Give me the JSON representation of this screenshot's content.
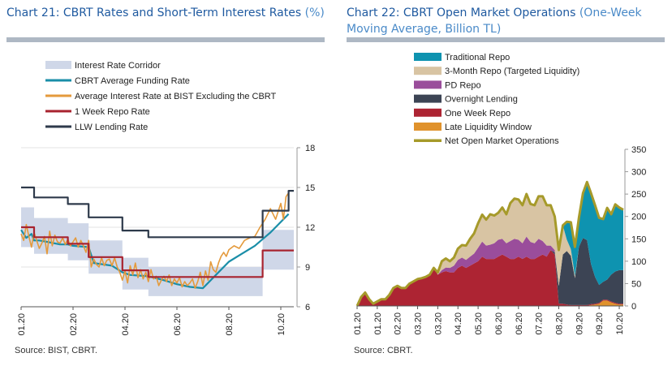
{
  "left_panel": {
    "title": "Chart 21: CBRT Rates and Short-Term Interest Rates",
    "title_unit": "(%)",
    "source": "Source: BIST, CBRT."
  },
  "right_panel": {
    "title": "Chart 22: CBRT Open Market Operations",
    "title_unit": "(One-Week Moving Average, Billion TL)",
    "source": "Source: CBRT."
  },
  "chart_data": [
    {
      "type": "line",
      "title": "Chart 21: CBRT Rates and Short-Term Interest Rates (%)",
      "ylim": [
        6,
        18
      ],
      "y_ticks": [
        6,
        9,
        12,
        15,
        18
      ],
      "y_axis_side": "right",
      "x_ticks": [
        "01.20",
        "02.20",
        "04.20",
        "06.20",
        "08.20",
        "10.20"
      ],
      "x_tick_pos": [
        0.0,
        2.0,
        4.0,
        6.0,
        8.0,
        10.0
      ],
      "x_range": [
        0,
        10.5
      ],
      "grid": true,
      "legend_position": "top",
      "band": {
        "name": "Interest Rate Corridor",
        "color": "#cfd7e8",
        "x": [
          0,
          0.5,
          0.5,
          1.8,
          1.8,
          2.6,
          2.6,
          3.9,
          3.9,
          4.9,
          4.9,
          9.3,
          9.3,
          10.5
        ],
        "lower": [
          10.5,
          10.5,
          10.0,
          10.0,
          9.5,
          9.5,
          8.5,
          8.5,
          7.3,
          7.3,
          6.8,
          6.8,
          8.8,
          8.8
        ],
        "upper": [
          13.5,
          13.5,
          12.7,
          12.7,
          12.3,
          12.3,
          11.0,
          11.0,
          9.7,
          9.7,
          9.0,
          9.0,
          11.8,
          11.8
        ]
      },
      "series": [
        {
          "name": "CBRT Average Funding Rate",
          "color": "#1a8ea8",
          "width": 2.2,
          "x": [
            0,
            0.2,
            0.4,
            0.5,
            0.7,
            1.0,
            1.5,
            1.8,
            2.0,
            2.6,
            2.8,
            3.5,
            3.9,
            4.2,
            4.9,
            5.5,
            6.0,
            6.5,
            7.0,
            7.5,
            8.0,
            8.5,
            9.0,
            9.3,
            9.6,
            10.0,
            10.3
          ],
          "y": [
            11.8,
            11.2,
            11.5,
            11.0,
            11.0,
            10.9,
            10.7,
            10.7,
            10.6,
            10.5,
            9.3,
            9.1,
            8.6,
            8.4,
            8.3,
            8.0,
            7.7,
            7.5,
            7.4,
            8.4,
            9.4,
            10.0,
            10.6,
            11.1,
            11.6,
            12.4,
            13.0
          ]
        },
        {
          "name": "Average Interest Rate at BIST Excluding the CBRT",
          "color": "#e49a3c",
          "width": 1.6,
          "x": [
            0,
            0.1,
            0.2,
            0.3,
            0.4,
            0.5,
            0.6,
            0.7,
            0.8,
            0.9,
            1.0,
            1.1,
            1.2,
            1.3,
            1.4,
            1.5,
            1.6,
            1.7,
            1.8,
            1.9,
            2.0,
            2.1,
            2.2,
            2.3,
            2.4,
            2.5,
            2.6,
            2.7,
            2.8,
            2.9,
            3.0,
            3.1,
            3.2,
            3.3,
            3.4,
            3.5,
            3.6,
            3.7,
            3.8,
            3.9,
            4.0,
            4.1,
            4.2,
            4.3,
            4.4,
            4.5,
            4.6,
            4.7,
            4.8,
            4.9,
            5.0,
            5.1,
            5.2,
            5.3,
            5.4,
            5.5,
            5.6,
            5.7,
            5.8,
            5.9,
            6.0,
            6.1,
            6.2,
            6.3,
            6.4,
            6.5,
            6.6,
            6.7,
            6.8,
            6.9,
            7.0,
            7.1,
            7.2,
            7.3,
            7.4,
            7.5,
            7.6,
            7.7,
            7.8,
            7.9,
            8.0,
            8.2,
            8.4,
            8.6,
            8.8,
            9.0,
            9.2,
            9.4,
            9.6,
            9.8,
            10.0,
            10.1,
            10.2,
            10.3
          ],
          "y": [
            11.5,
            11.0,
            12.2,
            11.3,
            10.5,
            11.6,
            11.0,
            10.4,
            10.8,
            11.3,
            10.0,
            11.7,
            10.6,
            11.4,
            10.9,
            10.8,
            11.2,
            10.7,
            11.1,
            10.6,
            10.9,
            11.2,
            10.5,
            11.0,
            10.6,
            10.1,
            11.0,
            9.0,
            9.6,
            9.2,
            9.0,
            9.7,
            9.1,
            9.5,
            9.6,
            9.1,
            9.7,
            9.0,
            8.6,
            8.0,
            8.7,
            7.8,
            9.1,
            8.4,
            9.3,
            8.2,
            8.8,
            8.1,
            8.6,
            7.9,
            8.8,
            8.1,
            8.3,
            7.6,
            8.0,
            8.3,
            7.9,
            8.4,
            7.6,
            8.1,
            7.8,
            8.2,
            7.5,
            7.9,
            7.6,
            7.8,
            8.1,
            7.4,
            7.9,
            8.6,
            7.6,
            8.7,
            8.0,
            9.4,
            8.8,
            8.6,
            9.3,
            9.8,
            10.1,
            9.8,
            10.3,
            10.6,
            10.4,
            11.0,
            11.2,
            11.3,
            12.0,
            12.6,
            13.4,
            12.6,
            13.8,
            12.6,
            14.3,
            14.6
          ]
        },
        {
          "name": "1 Week Repo Rate",
          "color": "#a8232f",
          "width": 2.2,
          "step": true,
          "x": [
            0,
            0.5,
            0.5,
            1.8,
            1.8,
            2.6,
            2.6,
            3.9,
            3.9,
            4.9,
            4.9,
            9.3,
            9.3,
            10.5
          ],
          "y": [
            12.0,
            12.0,
            11.25,
            11.25,
            10.75,
            10.75,
            9.75,
            9.75,
            8.75,
            8.75,
            8.25,
            8.25,
            10.25,
            10.25
          ]
        },
        {
          "name": "LLW Lending Rate",
          "color": "#2e3a4b",
          "width": 2.2,
          "step": true,
          "x": [
            0,
            0.5,
            0.5,
            1.8,
            1.8,
            2.6,
            2.6,
            3.9,
            3.9,
            4.9,
            4.9,
            9.3,
            9.3,
            10.3,
            10.3,
            10.5
          ],
          "y": [
            15.0,
            15.0,
            14.25,
            14.25,
            13.75,
            13.75,
            12.75,
            12.75,
            11.75,
            11.75,
            11.25,
            11.25,
            13.25,
            13.25,
            14.75,
            14.75
          ]
        }
      ]
    },
    {
      "type": "area",
      "title": "Chart 22: CBRT Open Market Operations (One-Week Moving Average, Billion TL)",
      "ylim": [
        0,
        350
      ],
      "y_ticks": [
        0,
        50,
        100,
        150,
        200,
        250,
        300,
        350
      ],
      "y_axis_side": "right",
      "x_ticks": [
        "01.20",
        "01.20",
        "02.20",
        "03.20",
        "03.20",
        "04.20",
        "05.20",
        "06.20",
        "06.20",
        "07.20",
        "08.20",
        "09.20",
        "09.20",
        "10.20"
      ],
      "x_tick_pos": [
        0,
        0.5,
        1,
        1.5,
        2,
        2.5,
        3,
        3.5,
        4,
        4.5,
        5,
        5.5,
        6,
        6.5
      ],
      "x_range": [
        0,
        6.6
      ],
      "legend_position": "top",
      "x": [
        0,
        0.1,
        0.2,
        0.3,
        0.4,
        0.5,
        0.6,
        0.7,
        0.8,
        0.9,
        1.0,
        1.1,
        1.2,
        1.3,
        1.4,
        1.5,
        1.6,
        1.7,
        1.8,
        1.9,
        2.0,
        2.1,
        2.2,
        2.3,
        2.4,
        2.5,
        2.6,
        2.7,
        2.8,
        2.9,
        3.0,
        3.1,
        3.2,
        3.3,
        3.4,
        3.5,
        3.6,
        3.7,
        3.8,
        3.9,
        4.0,
        4.1,
        4.2,
        4.3,
        4.4,
        4.5,
        4.6,
        4.7,
        4.8,
        4.9,
        5.0,
        5.1,
        5.2,
        5.3,
        5.4,
        5.5,
        5.6,
        5.7,
        5.8,
        5.9,
        6.0,
        6.1,
        6.2,
        6.3,
        6.4,
        6.5,
        6.6
      ],
      "series": [
        {
          "name": "Traditional Repo",
          "color": "#0e93b0",
          "values": [
            0,
            0,
            0,
            0,
            0,
            0,
            0,
            0,
            0,
            0,
            0,
            0,
            0,
            0,
            0,
            0,
            0,
            0,
            0,
            0,
            0,
            0,
            0,
            0,
            0,
            0,
            0,
            0,
            0,
            0,
            0,
            0,
            0,
            0,
            0,
            0,
            0,
            0,
            0,
            0,
            0,
            0,
            0,
            0,
            0,
            0,
            0,
            0,
            0,
            0,
            0,
            0,
            40,
            60,
            65,
            65,
            100,
            130,
            160,
            160,
            150,
            140,
            160,
            140,
            150,
            140,
            135
          ]
        },
        {
          "name": "3-Month Repo (Targeted Liquidity)",
          "color": "#d8c4a3",
          "values": [
            0,
            0,
            0,
            0,
            0,
            0,
            0,
            0,
            0,
            0,
            0,
            0,
            0,
            0,
            0,
            0,
            0,
            0,
            0,
            0,
            5,
            20,
            20,
            15,
            18,
            25,
            28,
            32,
            40,
            45,
            55,
            60,
            58,
            68,
            62,
            60,
            70,
            65,
            85,
            90,
            90,
            85,
            95,
            85,
            85,
            95,
            100,
            90,
            90,
            75,
            80,
            65,
            25,
            15,
            5,
            0,
            0,
            0,
            0,
            0,
            0,
            0,
            0,
            0,
            0,
            0,
            0
          ]
        },
        {
          "name": "PD Repo",
          "color": "#9a4d9b",
          "values": [
            0,
            0,
            0,
            0,
            0,
            0,
            0,
            0,
            0,
            0,
            0,
            0,
            0,
            0,
            0,
            0,
            0,
            0,
            0,
            0,
            0,
            5,
            8,
            10,
            15,
            18,
            18,
            18,
            20,
            22,
            30,
            34,
            30,
            32,
            35,
            38,
            35,
            30,
            40,
            45,
            38,
            35,
            45,
            38,
            35,
            40,
            30,
            25,
            10,
            5,
            0,
            0,
            0,
            0,
            0,
            0,
            0,
            0,
            0,
            0,
            0,
            0,
            0,
            0,
            0,
            0,
            0
          ]
        },
        {
          "name": "Overnight Lending",
          "color": "#3c4454",
          "values": [
            0,
            0,
            0,
            0,
            0,
            0,
            0,
            0,
            0,
            0,
            0,
            0,
            0,
            0,
            0,
            0,
            0,
            0,
            0,
            0,
            0,
            0,
            0,
            0,
            0,
            0,
            0,
            0,
            0,
            0,
            0,
            0,
            0,
            0,
            0,
            0,
            0,
            0,
            0,
            0,
            0,
            0,
            0,
            0,
            0,
            0,
            0,
            0,
            0,
            5,
            40,
            110,
            120,
            110,
            60,
            130,
            150,
            145,
            90,
            60,
            40,
            40,
            45,
            60,
            70,
            75,
            75
          ]
        },
        {
          "name": "One Week Repo",
          "color": "#ad2433",
          "values": [
            0,
            20,
            30,
            15,
            5,
            10,
            15,
            15,
            25,
            40,
            45,
            40,
            40,
            50,
            55,
            60,
            62,
            65,
            70,
            85,
            70,
            75,
            78,
            75,
            75,
            85,
            90,
            85,
            90,
            95,
            100,
            110,
            105,
            105,
            105,
            110,
            115,
            110,
            105,
            105,
            110,
            105,
            110,
            105,
            105,
            110,
            115,
            110,
            125,
            115,
            5,
            5,
            3,
            2,
            2,
            2,
            2,
            2,
            2,
            2,
            2,
            2,
            2,
            2,
            2,
            2,
            2
          ]
        },
        {
          "name": "Late Liquidity Window",
          "color": "#e0922c",
          "values": [
            0,
            0,
            0,
            0,
            0,
            0,
            0,
            0,
            0,
            0,
            0,
            0,
            0,
            0,
            0,
            0,
            0,
            0,
            0,
            0,
            0,
            0,
            0,
            0,
            0,
            0,
            0,
            0,
            0,
            0,
            0,
            0,
            0,
            0,
            0,
            0,
            0,
            0,
            0,
            0,
            0,
            0,
            0,
            0,
            0,
            0,
            0,
            0,
            0,
            0,
            0,
            0,
            0,
            0,
            0,
            0,
            0,
            0,
            2,
            3,
            5,
            12,
            12,
            8,
            5,
            3,
            3
          ]
        }
      ],
      "line": {
        "name": "Net Open Market Operations",
        "color": "#a69a2a",
        "values": [
          0,
          20,
          30,
          15,
          5,
          10,
          15,
          15,
          25,
          40,
          45,
          40,
          40,
          50,
          55,
          60,
          62,
          65,
          70,
          85,
          75,
          100,
          106,
          100,
          108,
          128,
          136,
          135,
          150,
          162,
          185,
          204,
          193,
          205,
          202,
          208,
          220,
          205,
          230,
          240,
          238,
          225,
          250,
          228,
          225,
          245,
          245,
          225,
          225,
          200,
          125,
          180,
          188,
          187,
          132,
          197,
          252,
          277,
          252,
          225,
          197,
          194,
          219,
          205,
          227,
          220,
          215
        ]
      }
    }
  ]
}
